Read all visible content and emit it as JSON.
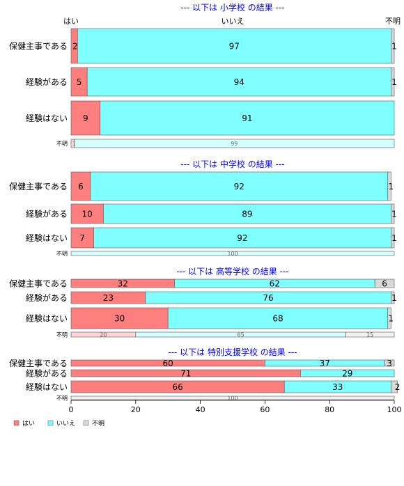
{
  "chart_data": {
    "type": "bar",
    "orientation": "horizontal",
    "stacked": true,
    "xlim": [
      0,
      100
    ],
    "x_ticks": [
      0,
      20,
      40,
      60,
      80,
      100
    ],
    "grid": false,
    "legend_position": "bottom-left",
    "top_axis_labels": [
      "はい",
      "いいえ",
      "不明"
    ],
    "series": [
      {
        "name": "はい",
        "color": "#ff7f7f"
      },
      {
        "name": "いいえ",
        "color": "#7fffff"
      },
      {
        "name": "不明",
        "color": "#d9d9d9"
      }
    ],
    "panels": [
      {
        "title": "--- 以下は 小学校 の結果 ---",
        "rows": [
          {
            "label": "保健主事である",
            "values": [
              2,
              97,
              1
            ],
            "size": "large"
          },
          {
            "label": "経験がある",
            "values": [
              5,
              94,
              1
            ],
            "size": "large"
          },
          {
            "label": "経験はない",
            "values": [
              9,
              91,
              0
            ],
            "size": "large"
          },
          {
            "label": "不明",
            "values": [
              1,
              99,
              0
            ],
            "size": "small"
          }
        ]
      },
      {
        "title": "--- 以下は 中学校 の結果 ---",
        "rows": [
          {
            "label": "保健主事である",
            "values": [
              6,
              92,
              1
            ],
            "size": "large"
          },
          {
            "label": "経験がある",
            "values": [
              10,
              89,
              1
            ],
            "size": "large"
          },
          {
            "label": "経験はない",
            "values": [
              7,
              92,
              1
            ],
            "size": "large"
          },
          {
            "label": "不明",
            "values": [
              0,
              100,
              0
            ],
            "size": "small"
          }
        ]
      },
      {
        "title": "--- 以下は 高等学校 の結果 ---",
        "rows": [
          {
            "label": "保健主事である",
            "values": [
              32,
              62,
              6
            ],
            "size": "large"
          },
          {
            "label": "経験がある",
            "values": [
              23,
              76,
              1
            ],
            "size": "large"
          },
          {
            "label": "経験はない",
            "values": [
              30,
              68,
              1
            ],
            "size": "large"
          },
          {
            "label": "不明",
            "values": [
              20,
              65,
              15
            ],
            "size": "small"
          }
        ]
      },
      {
        "title": "--- 以下は 特別支援学校 の結果 ---",
        "rows": [
          {
            "label": "保健主事である",
            "values": [
              60,
              37,
              3
            ],
            "size": "large"
          },
          {
            "label": "経験がある",
            "values": [
              71,
              29,
              0
            ],
            "size": "large"
          },
          {
            "label": "経験はない",
            "values": [
              66,
              33,
              2
            ],
            "size": "large"
          },
          {
            "label": "不明",
            "values": [
              0,
              0,
              100
            ],
            "size": "small"
          }
        ]
      }
    ]
  }
}
